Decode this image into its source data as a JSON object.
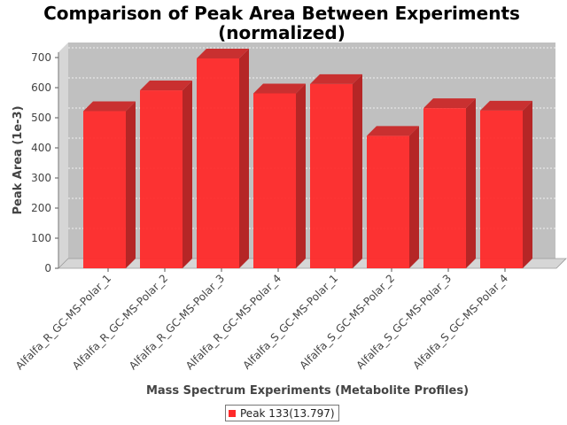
{
  "chart_data": {
    "type": "bar",
    "title_lines": [
      "Comparison of Peak Area Between Experiments",
      "(normalized)"
    ],
    "xlabel": "Mass Spectrum Experiments (Metabolite Profiles)",
    "ylabel": "Peak Area (1e-3)",
    "categories": [
      "Alfalfa_R_GC-MS-Polar_1",
      "Alfalfa_R_GC-MS-Polar_2",
      "Alfalfa_R_GC-MS-Polar_3",
      "Alfalfa_R_GC-MS-Polar_4",
      "Alfalfa_S_GC-MS-Polar_1",
      "Alfalfa_S_GC-MS-Polar_2",
      "Alfalfa_S_GC-MS-Polar_3",
      "Alfalfa_S_GC-MS-Polar_4"
    ],
    "series": [
      {
        "name": "Peak 133(13.797)",
        "color": "#ff2a2a",
        "values": [
          522,
          591,
          697,
          581,
          612,
          440,
          532,
          524
        ]
      }
    ],
    "ylim": [
      0,
      750
    ],
    "yticks": [
      0,
      100,
      200,
      300,
      400,
      500,
      600,
      700
    ],
    "grid": true,
    "legend_position": "bottom-center",
    "style": "3d-bar"
  }
}
